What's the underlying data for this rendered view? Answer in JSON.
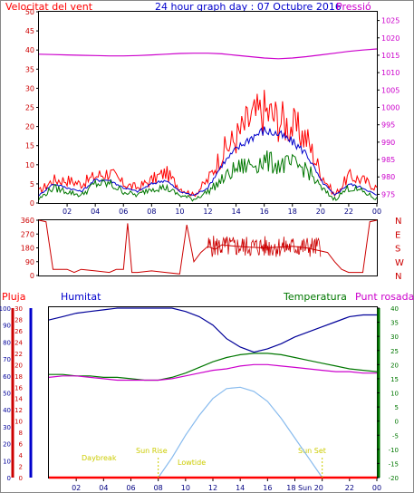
{
  "header": {
    "wind_label": "Velocitat del vent",
    "title": "24 hour graph day : 07 Octubre 2016",
    "pressure_label": "Pressió"
  },
  "lower_header": {
    "rain_label": "Pluja",
    "humidity_label": "Humitat",
    "temperature_label": "Temperatura",
    "dewpoint_label": "Punt rosada"
  },
  "sun_labels": {
    "daybreak": "Daybreak",
    "sunrise": "Sun Rise",
    "lowtide": "Lowtide",
    "sunset": "Sun Set",
    "sunset_tick": "18 Sun 20"
  },
  "colors": {
    "wind_gust": "#ff0000",
    "wind_avg": "#0000cc",
    "wind_speed": "#007700",
    "pressure": "#cc00cc",
    "direction": "#cc0000",
    "humidity": "#000099",
    "temperature": "#007700",
    "dewpoint": "#cc00cc",
    "sun": "#88bbee",
    "rain": "#ff0000",
    "sun_label": "#cccc00"
  },
  "chart_data": [
    {
      "type": "line",
      "name": "wind-and-pressure",
      "x_ticks": [
        "02",
        "04",
        "06",
        "08",
        "10",
        "12",
        "14",
        "16",
        "18",
        "20",
        "22",
        "00"
      ],
      "xlim": [
        0,
        24
      ],
      "y_left_ticks": [
        0,
        5,
        10,
        15,
        20,
        25,
        30,
        35,
        40,
        45,
        50
      ],
      "ylim_left": [
        0,
        50
      ],
      "y_right_ticks": [
        975,
        980,
        985,
        990,
        995,
        1000,
        1005,
        1010,
        1015,
        1020,
        1025
      ],
      "ylim_right": [
        972.5,
        1027.5
      ],
      "x": [
        0,
        1,
        2,
        3,
        4,
        5,
        6,
        7,
        8,
        9,
        10,
        11,
        12,
        13,
        14,
        15,
        16,
        17,
        18,
        19,
        20,
        21,
        22,
        23,
        24
      ],
      "series": [
        {
          "name": "gust",
          "axis": "left",
          "values": [
            3,
            6,
            6,
            5,
            7,
            8,
            5,
            4,
            6,
            8,
            4,
            2,
            6,
            13,
            17,
            22,
            24,
            22,
            20,
            17,
            8,
            2,
            7,
            6,
            4
          ]
        },
        {
          "name": "average",
          "axis": "left",
          "values": [
            2,
            5,
            4,
            3,
            6,
            6,
            4,
            3,
            5,
            6,
            3,
            2,
            4,
            10,
            14,
            17,
            19,
            18,
            16,
            13,
            6,
            2,
            5,
            4,
            2
          ]
        },
        {
          "name": "speed",
          "axis": "left",
          "values": [
            1,
            4,
            3,
            2,
            5,
            5,
            3,
            2,
            4,
            4,
            2,
            1,
            3,
            6,
            9,
            10,
            11,
            10,
            10,
            9,
            4,
            1,
            4,
            3,
            1
          ]
        },
        {
          "name": "pressure",
          "axis": "right",
          "values": [
            1015.3,
            1015.2,
            1015.1,
            1015.0,
            1014.9,
            1014.8,
            1014.8,
            1014.9,
            1015.1,
            1015.3,
            1015.5,
            1015.6,
            1015.6,
            1015.4,
            1015.0,
            1014.6,
            1014.2,
            1014.0,
            1014.2,
            1014.6,
            1015.1,
            1015.6,
            1016.1,
            1016.5,
            1016.8
          ]
        }
      ]
    },
    {
      "type": "line",
      "name": "wind-direction",
      "x_ticks": [
        "02",
        "04",
        "06",
        "08",
        "10",
        "12",
        "14",
        "16",
        "18",
        "20",
        "22",
        "00"
      ],
      "xlim": [
        0,
        24
      ],
      "y_ticks": [
        0,
        90,
        180,
        270,
        360
      ],
      "y_right_labels": [
        "N",
        "W",
        "S",
        "E",
        "N"
      ],
      "ylim": [
        0,
        360
      ],
      "x": [
        0,
        0.5,
        1,
        1.5,
        2,
        2.5,
        3,
        4,
        5,
        5.5,
        6,
        6.3,
        6.6,
        7,
        8,
        9,
        10,
        10.5,
        11,
        11.5,
        12,
        12.5,
        13,
        14,
        15,
        16,
        17,
        18,
        19,
        20,
        20.5,
        21,
        21.5,
        22,
        22.5,
        23,
        23.5,
        24
      ],
      "series": [
        {
          "name": "direction",
          "values": [
            360,
            350,
            40,
            40,
            40,
            20,
            40,
            30,
            20,
            40,
            40,
            340,
            20,
            20,
            30,
            20,
            10,
            330,
            90,
            150,
            190,
            170,
            200,
            190,
            185,
            180,
            185,
            190,
            180,
            160,
            150,
            90,
            40,
            20,
            20,
            20,
            350,
            360
          ]
        }
      ]
    },
    {
      "type": "line",
      "name": "humidity-temperature-rain",
      "x_ticks": [
        "02",
        "04",
        "06",
        "08",
        "10",
        "12",
        "14",
        "16",
        "",
        "",
        "22",
        "00"
      ],
      "xlim": [
        0,
        24
      ],
      "y_rain_ticks": [
        0,
        2,
        4,
        6,
        8,
        10,
        12,
        14,
        16,
        18,
        20,
        22,
        24,
        26,
        28,
        30
      ],
      "ylim_rain": [
        0,
        30
      ],
      "y_humidity_ticks": [
        0,
        10,
        20,
        30,
        40,
        50,
        60,
        70,
        80,
        90,
        100
      ],
      "ylim_humidity": [
        0,
        100
      ],
      "y_temp_ticks": [
        -20,
        -15,
        -10,
        -5,
        0,
        5,
        10,
        15,
        20,
        25,
        30,
        35,
        40
      ],
      "ylim_temp": [
        -20,
        40
      ],
      "x": [
        0,
        1,
        2,
        3,
        4,
        5,
        6,
        7,
        8,
        9,
        10,
        11,
        12,
        13,
        14,
        15,
        16,
        17,
        18,
        19,
        20,
        21,
        22,
        23,
        24
      ],
      "series": [
        {
          "name": "humidity",
          "axis": "humidity",
          "values": [
            93,
            95,
            97,
            98,
            99,
            100,
            100,
            100,
            100,
            100,
            98,
            95,
            90,
            82,
            77,
            74,
            76,
            79,
            83,
            86,
            89,
            92,
            95,
            96,
            96
          ]
        },
        {
          "name": "temperature",
          "axis": "temp",
          "values": [
            16.5,
            16.5,
            16.0,
            16.0,
            15.5,
            15.5,
            15.0,
            14.5,
            14.5,
            15.5,
            17.0,
            19.0,
            21.0,
            22.5,
            23.5,
            24.0,
            24.0,
            23.5,
            22.5,
            21.5,
            20.5,
            19.5,
            18.5,
            18.0,
            17.5
          ]
        },
        {
          "name": "dewpoint",
          "axis": "temp",
          "values": [
            15.5,
            16.0,
            16.0,
            15.5,
            15.0,
            14.5,
            14.5,
            14.5,
            14.5,
            15.0,
            16.0,
            17.0,
            18.0,
            18.5,
            19.5,
            20.0,
            20.0,
            19.5,
            19.0,
            18.5,
            18.0,
            17.5,
            17.5,
            17.0,
            17.0
          ]
        },
        {
          "name": "sun",
          "axis": "temp",
          "values": [
            -20,
            -20,
            -20,
            -20,
            -20,
            -20,
            -20,
            -20,
            -20,
            -13,
            -5,
            2,
            8,
            11.5,
            12,
            10.5,
            7,
            1,
            -6,
            -13,
            -20,
            -20,
            -20,
            -20,
            -20
          ]
        },
        {
          "name": "rain",
          "axis": "rain",
          "values": [
            0,
            0,
            0,
            0,
            0,
            0,
            0,
            0,
            0,
            0,
            0,
            0,
            0,
            0,
            0,
            0,
            0,
            0,
            0,
            0,
            0,
            0,
            0,
            0,
            0
          ]
        }
      ]
    }
  ]
}
